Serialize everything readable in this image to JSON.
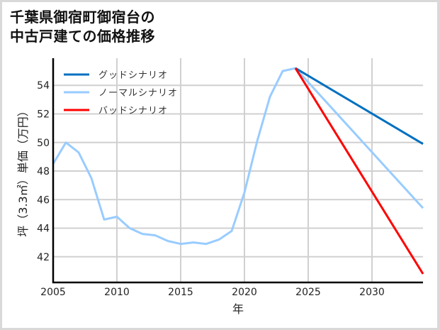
{
  "title": {
    "line1": "千葉県御宿町御宿台の",
    "line2": "中古戸建ての価格推移"
  },
  "chart_data": {
    "type": "line",
    "title": "千葉県御宿町御宿台の中古戸建ての価格推移",
    "xlabel": "年",
    "ylabel": "坪（3.3㎡）単価（万円）",
    "xlim": [
      2005,
      2034
    ],
    "ylim": [
      40.2,
      55.9
    ],
    "xticks": [
      2005,
      2010,
      2015,
      2020,
      2025,
      2030
    ],
    "yticks": [
      42,
      44,
      46,
      48,
      50,
      52,
      54
    ],
    "grid": true,
    "legend_position": "upper left",
    "series": [
      {
        "name": "グッドシナリオ",
        "color": "#0070c0",
        "x": [
          2024,
          2034
        ],
        "values": [
          55.2,
          49.9
        ]
      },
      {
        "name": "ノーマルシナリオ",
        "color": "#99ccff",
        "x": [
          2005,
          2006,
          2007,
          2008,
          2009,
          2010,
          2011,
          2012,
          2013,
          2014,
          2015,
          2016,
          2017,
          2018,
          2019,
          2020,
          2021,
          2022,
          2023,
          2024,
          2034
        ],
        "values": [
          48.5,
          50.0,
          49.3,
          47.5,
          44.6,
          44.8,
          44.0,
          43.6,
          43.5,
          43.1,
          42.9,
          43.0,
          42.9,
          43.2,
          43.8,
          46.5,
          50.1,
          53.2,
          55.0,
          55.2,
          45.4
        ]
      },
      {
        "name": "バッドシナリオ",
        "color": "#ff0000",
        "x": [
          2024,
          2034
        ],
        "values": [
          55.2,
          40.8
        ]
      }
    ]
  }
}
